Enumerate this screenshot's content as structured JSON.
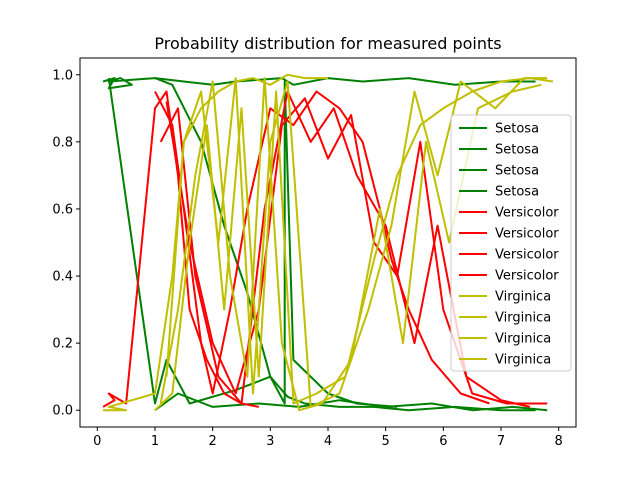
{
  "chart_data": {
    "type": "line",
    "title": "Probability distribution for measured points",
    "xlabel": "",
    "ylabel": "",
    "xlim": [
      -0.3,
      8.3
    ],
    "ylim": [
      -0.05,
      1.05
    ],
    "xticks": [
      0,
      1,
      2,
      3,
      4,
      5,
      6,
      7,
      8
    ],
    "xtick_labels": [
      "0",
      "1",
      "2",
      "3",
      "4",
      "5",
      "6",
      "7",
      "8"
    ],
    "yticks": [
      0.0,
      0.2,
      0.4,
      0.6,
      0.8,
      1.0
    ],
    "ytick_labels": [
      "0.0",
      "0.2",
      "0.4",
      "0.6",
      "0.8",
      "1.0"
    ],
    "grid": false,
    "legend_position": "right",
    "series": [
      {
        "name": "Setosa",
        "color": "#008000",
        "x": [
          0.1,
          0.3,
          0.2,
          0.6,
          0.4,
          0.2,
          1.0,
          1.5,
          2.0,
          2.4,
          3.2,
          3.4,
          4.0,
          4.6,
          5.4,
          6.2,
          7.0,
          7.6
        ],
        "y": [
          0.98,
          0.99,
          0.96,
          0.97,
          0.99,
          0.98,
          0.99,
          0.98,
          0.97,
          0.98,
          0.99,
          0.97,
          0.99,
          0.98,
          0.99,
          0.97,
          0.98,
          0.98
        ]
      },
      {
        "name": "Setosa",
        "color": "#008000",
        "x": [
          0.2,
          1.0,
          1.2,
          1.6,
          2.4,
          3.0,
          3.3,
          3.6,
          4.2,
          4.8,
          5.4,
          6.2,
          7.0,
          7.6
        ],
        "y": [
          0.99,
          0.02,
          0.15,
          0.02,
          0.06,
          0.1,
          0.04,
          0.02,
          0.01,
          0.01,
          0.0,
          0.01,
          0.0,
          0.0
        ]
      },
      {
        "name": "Setosa",
        "color": "#008000",
        "x": [
          1.0,
          1.3,
          1.8,
          2.2,
          2.6,
          3.0,
          3.25,
          3.25,
          3.4,
          4.0,
          4.5,
          5.2
        ],
        "y": [
          0.99,
          0.97,
          0.8,
          0.55,
          0.35,
          0.1,
          0.02,
          0.98,
          0.15,
          0.05,
          0.02,
          0.01
        ]
      },
      {
        "name": "Setosa",
        "color": "#008000",
        "x": [
          1.0,
          1.4,
          2.0,
          2.8,
          3.5,
          4.2,
          5.0,
          5.8,
          6.5,
          7.2,
          7.8
        ],
        "y": [
          0.0,
          0.05,
          0.01,
          0.02,
          0.01,
          0.03,
          0.01,
          0.02,
          0.0,
          0.01,
          0.0
        ]
      },
      {
        "name": "Versicolor",
        "color": "#ff0000",
        "x": [
          0.1,
          0.3,
          0.2,
          0.5,
          1.0,
          1.2,
          1.4,
          1.6,
          1.9,
          2.2,
          2.5,
          2.8
        ],
        "y": [
          0.01,
          0.03,
          0.05,
          0.02,
          0.9,
          0.95,
          0.7,
          0.3,
          0.15,
          0.05,
          0.02,
          0.01
        ]
      },
      {
        "name": "Versicolor",
        "color": "#ff0000",
        "x": [
          1.0,
          1.3,
          1.5,
          1.8,
          2.0,
          2.3,
          2.6,
          3.0,
          3.4,
          3.8,
          4.2,
          4.6,
          4.9,
          5.1,
          5.4,
          5.8,
          6.3,
          6.8
        ],
        "y": [
          0.95,
          0.85,
          0.6,
          0.2,
          0.05,
          0.3,
          0.6,
          0.9,
          0.85,
          0.95,
          0.9,
          0.8,
          0.6,
          0.45,
          0.3,
          0.15,
          0.05,
          0.02
        ]
      },
      {
        "name": "Versicolor",
        "color": "#ff0000",
        "x": [
          1.1,
          1.4,
          1.7,
          2.1,
          2.5,
          2.9,
          3.3,
          3.7,
          4.1,
          4.5,
          5.0,
          5.5,
          5.9,
          6.4,
          7.0,
          7.5
        ],
        "y": [
          0.8,
          0.9,
          0.4,
          0.1,
          0.02,
          0.6,
          0.95,
          0.8,
          0.9,
          0.7,
          0.55,
          0.2,
          0.55,
          0.1,
          0.03,
          0.01
        ]
      },
      {
        "name": "Versicolor",
        "color": "#ff0000",
        "x": [
          1.2,
          1.6,
          2.0,
          2.4,
          2.8,
          3.2,
          3.6,
          4.0,
          4.4,
          4.8,
          5.2,
          5.6,
          6.0,
          6.5,
          7.1,
          7.8
        ],
        "y": [
          0.92,
          0.5,
          0.2,
          0.05,
          0.3,
          0.85,
          0.93,
          0.75,
          0.88,
          0.5,
          0.4,
          0.8,
          0.3,
          0.05,
          0.02,
          0.02
        ]
      },
      {
        "name": "Virginica",
        "color": "#bfbf00",
        "x": [
          0.1,
          0.5,
          0.2,
          1.0,
          1.3,
          1.5,
          1.8,
          2.1,
          2.4,
          2.7,
          3.0,
          3.3,
          3.6,
          4.0
        ],
        "y": [
          0.0,
          0.0,
          0.01,
          0.05,
          0.4,
          0.8,
          0.9,
          0.95,
          0.98,
          0.99,
          0.97,
          1.0,
          0.99,
          0.99
        ]
      },
      {
        "name": "Virginica",
        "color": "#bfbf00",
        "x": [
          1.0,
          1.3,
          1.6,
          1.9,
          2.2,
          2.5,
          2.8,
          3.1,
          3.4,
          3.8,
          4.3,
          4.8,
          5.2,
          5.6,
          6.0,
          6.5,
          7.0,
          7.5,
          7.9
        ],
        "y": [
          0.0,
          0.05,
          0.5,
          0.85,
          0.3,
          0.9,
          0.1,
          0.95,
          0.02,
          0.05,
          0.1,
          0.45,
          0.7,
          0.85,
          0.9,
          0.95,
          0.98,
          0.99,
          0.98
        ]
      },
      {
        "name": "Virginica",
        "color": "#bfbf00",
        "x": [
          1.1,
          1.4,
          1.7,
          2.0,
          2.3,
          2.6,
          2.9,
          3.2,
          3.5,
          3.9,
          4.4,
          4.9,
          5.3,
          5.7,
          6.1,
          6.6,
          7.2,
          7.7
        ],
        "y": [
          0.02,
          0.3,
          0.7,
          0.98,
          0.4,
          0.1,
          0.99,
          0.2,
          0.0,
          0.02,
          0.15,
          0.6,
          0.2,
          0.8,
          0.5,
          0.9,
          0.95,
          0.97
        ]
      },
      {
        "name": "Virginica",
        "color": "#bfbf00",
        "x": [
          1.2,
          1.5,
          1.8,
          2.1,
          2.4,
          2.7,
          3.0,
          3.3,
          3.7,
          4.2,
          4.7,
          5.1,
          5.5,
          5.9,
          6.3,
          6.9,
          7.4,
          7.8
        ],
        "y": [
          0.1,
          0.8,
          0.95,
          0.5,
          0.99,
          0.05,
          0.8,
          0.98,
          0.01,
          0.05,
          0.3,
          0.55,
          0.95,
          0.7,
          0.98,
          0.9,
          0.99,
          0.99
        ]
      }
    ]
  }
}
